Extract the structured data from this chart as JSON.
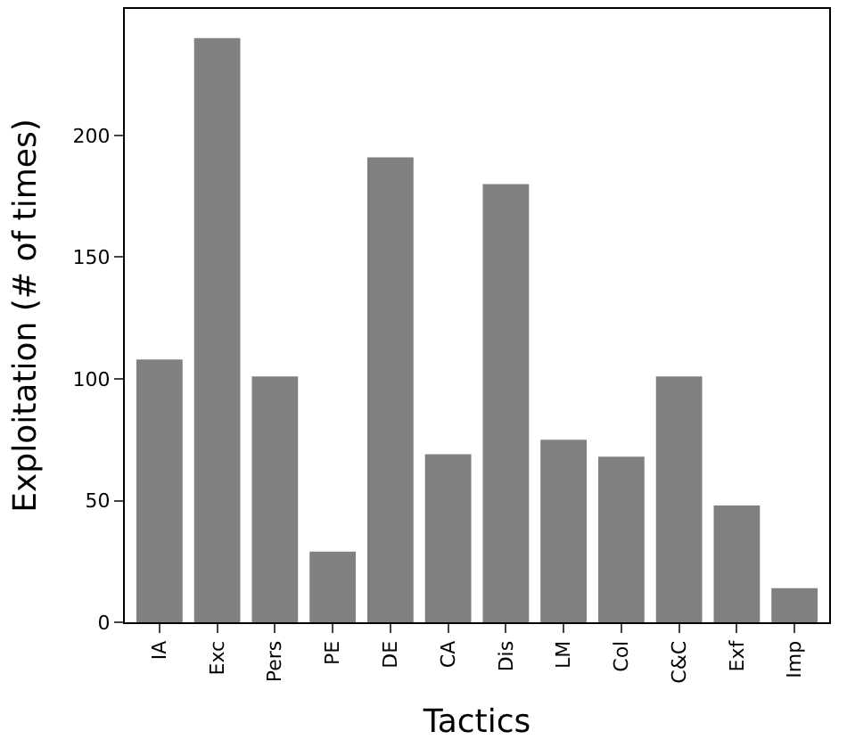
{
  "chart_data": {
    "type": "bar",
    "xlabel": "Tactics",
    "ylabel": "Exploitation (# of times)",
    "categories": [
      "IA",
      "Exc",
      "Pers",
      "PE",
      "DE",
      "CA",
      "Dis",
      "LM",
      "Col",
      "C&C",
      "Exf",
      "Imp"
    ],
    "values": [
      108,
      240,
      101,
      29,
      191,
      69,
      180,
      75,
      68,
      101,
      48,
      14
    ],
    "color": "#808080",
    "ylim": [
      0,
      252
    ],
    "yticks": [
      0,
      50,
      100,
      150,
      200
    ],
    "legend": false
  }
}
